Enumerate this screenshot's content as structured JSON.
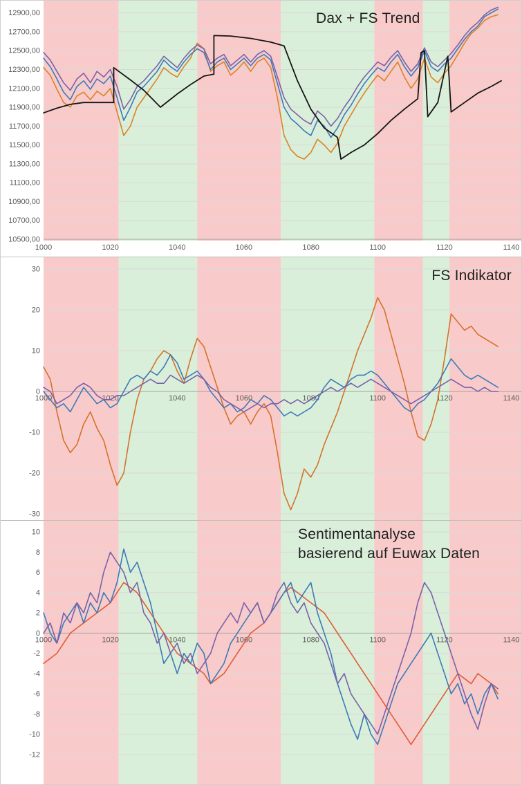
{
  "palette": {
    "band_red": "#f9caca",
    "band_green": "#d9efd9",
    "grid": "#d9d9d9",
    "axis": "#a3a3a3",
    "tick_text": "#595959",
    "title_text": "#1f1f1f",
    "blue": "#3d7ab8",
    "orange_top": "#dd8127",
    "orange_mid": "#d4722b",
    "orange_bottom": "#e05c35",
    "purple": "#7a61a9",
    "black": "#151515"
  },
  "chart_data": [
    {
      "type": "line",
      "title": "Dax + FS Trend",
      "xlabel": "",
      "ylabel": "",
      "xlim": [
        1000,
        1143
      ],
      "ylim": [
        10500,
        13000
      ],
      "xticks": [
        1000,
        1020,
        1040,
        1060,
        1080,
        1100,
        1120,
        1140
      ],
      "yticks": [
        10500,
        10700,
        10900,
        11100,
        11300,
        11500,
        11700,
        11900,
        12100,
        12300,
        12500,
        12700,
        12900
      ],
      "ytick_labels": [
        "10500,00",
        "10700,00",
        "10900,00",
        "11100,00",
        "11300,00",
        "11500,00",
        "11700,00",
        "11900,00",
        "12100,00",
        "12300,00",
        "12500,00",
        "12700,00",
        "12900,00"
      ],
      "grid": true,
      "legend": "none",
      "bands": [
        {
          "from": 1000,
          "to": 1022.5,
          "color": "#f9caca"
        },
        {
          "from": 1022.5,
          "to": 1046,
          "color": "#d9efd9"
        },
        {
          "from": 1046,
          "to": 1071,
          "color": "#f9caca"
        },
        {
          "from": 1071,
          "to": 1099,
          "color": "#d9efd9"
        },
        {
          "from": 1099,
          "to": 1113.5,
          "color": "#f9caca"
        },
        {
          "from": 1113.5,
          "to": 1121.5,
          "color": "#d9efd9"
        },
        {
          "from": 1121.5,
          "to": 1143,
          "color": "#f9caca"
        }
      ],
      "series": [
        {
          "name": "dax-orange",
          "color": "#dd8127",
          "x_start": 1000,
          "x_step": 2,
          "y": [
            12320,
            12240,
            12090,
            11950,
            11900,
            12020,
            12060,
            11980,
            12070,
            12020,
            12100,
            11850,
            11600,
            11700,
            11900,
            12000,
            12100,
            12200,
            12320,
            12260,
            12220,
            12330,
            12420,
            12580,
            12520,
            12280,
            12340,
            12380,
            12240,
            12300,
            12380,
            12280,
            12380,
            12420,
            12320,
            12000,
            11600,
            11450,
            11380,
            11350,
            11420,
            11560,
            11500,
            11420,
            11520,
            11700,
            11820,
            11940,
            12050,
            12150,
            12240,
            12180,
            12280,
            12380,
            12220,
            12100,
            12200,
            12420,
            12220,
            12160,
            12260,
            12340,
            12460,
            12580,
            12680,
            12740,
            12820,
            12860,
            12880
          ]
        },
        {
          "name": "dax-blue",
          "color": "#3d7ab8",
          "x_start": 1000,
          "x_step": 2,
          "y": [
            12420,
            12330,
            12200,
            12060,
            11980,
            12120,
            12180,
            12090,
            12200,
            12150,
            12230,
            12000,
            11760,
            11900,
            12060,
            12120,
            12200,
            12280,
            12400,
            12330,
            12280,
            12380,
            12460,
            12520,
            12480,
            12300,
            12380,
            12420,
            12300,
            12360,
            12420,
            12340,
            12420,
            12460,
            12400,
            12150,
            11900,
            11780,
            11720,
            11650,
            11600,
            11760,
            11700,
            11580,
            11680,
            11820,
            11920,
            12040,
            12150,
            12240,
            12320,
            12280,
            12380,
            12460,
            12330,
            12230,
            12320,
            12500,
            12330,
            12280,
            12360,
            12420,
            12520,
            12620,
            12700,
            12760,
            12860,
            12900,
            12940
          ]
        },
        {
          "name": "dax-purple",
          "color": "#7a61a9",
          "x_start": 1000,
          "x_step": 2,
          "y": [
            12480,
            12400,
            12280,
            12160,
            12080,
            12200,
            12260,
            12160,
            12280,
            12220,
            12300,
            12120,
            11880,
            11980,
            12120,
            12180,
            12260,
            12340,
            12440,
            12380,
            12320,
            12420,
            12500,
            12560,
            12520,
            12360,
            12420,
            12460,
            12340,
            12400,
            12460,
            12380,
            12460,
            12500,
            12440,
            12220,
            12000,
            11880,
            11820,
            11760,
            11720,
            11860,
            11800,
            11700,
            11780,
            11900,
            12000,
            12120,
            12220,
            12300,
            12380,
            12340,
            12430,
            12500,
            12380,
            12280,
            12360,
            12530,
            12380,
            12330,
            12400,
            12470,
            12560,
            12660,
            12740,
            12800,
            12880,
            12930,
            12960
          ]
        },
        {
          "name": "fs-trend-black",
          "color": "#151515",
          "width": 1.8,
          "points": [
            [
              1000,
              11840
            ],
            [
              1004,
              11890
            ],
            [
              1008,
              11930
            ],
            [
              1012,
              11950
            ],
            [
              1016,
              11950
            ],
            [
              1021,
              11950
            ],
            [
              1021,
              12320
            ],
            [
              1026,
              12190
            ],
            [
              1030,
              12080
            ],
            [
              1035,
              11900
            ],
            [
              1040,
              12040
            ],
            [
              1044,
              12140
            ],
            [
              1048,
              12230
            ],
            [
              1051,
              12250
            ],
            [
              1051,
              12660
            ],
            [
              1056,
              12655
            ],
            [
              1062,
              12630
            ],
            [
              1068,
              12590
            ],
            [
              1072,
              12550
            ],
            [
              1076,
              12180
            ],
            [
              1080,
              11880
            ],
            [
              1084,
              11680
            ],
            [
              1088,
              11580
            ],
            [
              1089,
              11350
            ],
            [
              1092,
              11420
            ],
            [
              1096,
              11500
            ],
            [
              1100,
              11620
            ],
            [
              1104,
              11760
            ],
            [
              1108,
              11880
            ],
            [
              1112,
              11990
            ],
            [
              1113,
              12480
            ],
            [
              1114,
              12500
            ],
            [
              1115,
              11800
            ],
            [
              1118,
              11950
            ],
            [
              1121,
              12440
            ],
            [
              1122,
              11850
            ],
            [
              1126,
              11950
            ],
            [
              1130,
              12050
            ],
            [
              1134,
              12120
            ],
            [
              1137,
              12180
            ]
          ]
        }
      ]
    },
    {
      "type": "line",
      "title": "FS Indikator",
      "xlabel": "",
      "ylabel": "",
      "xlim": [
        1000,
        1143
      ],
      "ylim": [
        -30,
        30
      ],
      "xticks": [
        1000,
        1020,
        1040,
        1060,
        1080,
        1100,
        1120,
        1140
      ],
      "yticks": [
        -30,
        -20,
        -10,
        0,
        10,
        20,
        30
      ],
      "grid": true,
      "legend": "none",
      "bands": [
        {
          "from": 1000,
          "to": 1022.5,
          "color": "#f9caca"
        },
        {
          "from": 1022.5,
          "to": 1046,
          "color": "#d9efd9"
        },
        {
          "from": 1046,
          "to": 1071,
          "color": "#f9caca"
        },
        {
          "from": 1071,
          "to": 1099,
          "color": "#d9efd9"
        },
        {
          "from": 1099,
          "to": 1113.5,
          "color": "#f9caca"
        },
        {
          "from": 1113.5,
          "to": 1121.5,
          "color": "#d9efd9"
        },
        {
          "from": 1121.5,
          "to": 1143,
          "color": "#f9caca"
        }
      ],
      "series": [
        {
          "name": "indikator-orange",
          "color": "#d4722b",
          "x_start": 1000,
          "x_step": 2,
          "y": [
            6,
            3,
            -5,
            -12,
            -15,
            -13,
            -8,
            -5,
            -9,
            -12,
            -18,
            -23,
            -20,
            -10,
            -2,
            3,
            5,
            8,
            10,
            9,
            5,
            2,
            8,
            13,
            11,
            6,
            1,
            -4,
            -8,
            -6,
            -5,
            -8,
            -5,
            -3,
            -6,
            -15,
            -25,
            -29,
            -25,
            -19,
            -21,
            -18,
            -13,
            -9,
            -5,
            0,
            5,
            10,
            14,
            18,
            23,
            20,
            14,
            8,
            2,
            -5,
            -11,
            -12,
            -8,
            -2,
            8,
            19,
            17,
            15,
            16,
            14,
            13,
            12,
            11
          ]
        },
        {
          "name": "indikator-blue",
          "color": "#3d7ab8",
          "x_start": 1000,
          "x_step": 2,
          "y": [
            0,
            -2,
            -4,
            -3,
            -5,
            -2,
            1,
            -1,
            -3,
            -2,
            -4,
            -3,
            0,
            3,
            4,
            3,
            5,
            4,
            6,
            9,
            7,
            3,
            4,
            5,
            3,
            0,
            -2,
            -4,
            -3,
            -5,
            -4,
            -2,
            -3,
            -1,
            -2,
            -4,
            -6,
            -5,
            -6,
            -5,
            -4,
            -2,
            1,
            3,
            2,
            1,
            3,
            4,
            4,
            5,
            4,
            2,
            0,
            -2,
            -4,
            -5,
            -3,
            -2,
            0,
            2,
            5,
            8,
            6,
            4,
            3,
            4,
            3,
            2,
            1
          ]
        },
        {
          "name": "indikator-purple",
          "color": "#7a61a9",
          "x_start": 1000,
          "x_step": 2,
          "y": [
            1,
            0,
            -3,
            -2,
            -1,
            1,
            2,
            1,
            -1,
            -2,
            -2,
            -1,
            -1,
            0,
            1,
            2,
            3,
            2,
            2,
            4,
            3,
            2,
            3,
            4,
            3,
            1,
            0,
            -2,
            -3,
            -4,
            -5,
            -4,
            -3,
            -4,
            -3,
            -3,
            -2,
            -3,
            -2,
            -3,
            -2,
            -1,
            0,
            1,
            0,
            1,
            2,
            1,
            2,
            3,
            2,
            1,
            0,
            -1,
            -2,
            -3,
            -2,
            -1,
            0,
            1,
            2,
            3,
            2,
            1,
            1,
            0,
            1,
            0,
            0
          ]
        }
      ]
    },
    {
      "type": "line",
      "title": "Sentimentanalyse basierend auf Euwax Daten",
      "title_lines": [
        "Sentimentanalyse",
        "basierend auf Euwax Daten"
      ],
      "xlabel": "",
      "ylabel": "",
      "xlim": [
        1000,
        1143
      ],
      "ylim": [
        -12,
        10
      ],
      "xticks": [
        1000,
        1020,
        1040,
        1060,
        1080,
        1100,
        1120,
        1140
      ],
      "yticks": [
        -12,
        -10,
        -8,
        -6,
        -4,
        -2,
        0,
        2,
        4,
        6,
        8,
        10
      ],
      "grid": true,
      "legend": "none",
      "bands": [
        {
          "from": 1000,
          "to": 1022.5,
          "color": "#f9caca"
        },
        {
          "from": 1022.5,
          "to": 1046,
          "color": "#d9efd9"
        },
        {
          "from": 1046,
          "to": 1071,
          "color": "#f9caca"
        },
        {
          "from": 1071,
          "to": 1099,
          "color": "#d9efd9"
        },
        {
          "from": 1099,
          "to": 1113.5,
          "color": "#f9caca"
        },
        {
          "from": 1113.5,
          "to": 1121.5,
          "color": "#d9efd9"
        },
        {
          "from": 1121.5,
          "to": 1143,
          "color": "#f9caca"
        }
      ],
      "series": [
        {
          "name": "sentiment-orange",
          "color": "#e05c35",
          "x_start": 1000,
          "x_step": 2,
          "y": [
            -3,
            -2.5,
            -2,
            -1,
            0,
            0.5,
            1,
            1.5,
            2,
            2.5,
            3,
            4,
            5,
            4.5,
            4,
            3,
            2,
            1,
            0,
            -1,
            -2,
            -2.5,
            -3,
            -3.5,
            -4,
            -5,
            -4.5,
            -4,
            -3,
            -2,
            -1,
            0,
            0.5,
            1,
            2,
            3,
            4,
            4.5,
            4,
            3.5,
            3,
            2.5,
            2,
            1,
            0,
            -1,
            -2,
            -3,
            -4,
            -5,
            -6,
            -7,
            -8,
            -9,
            -10,
            -11,
            -10,
            -9,
            -8,
            -7,
            -6,
            -5,
            -4,
            -4.5,
            -5,
            -4,
            -4.5,
            -5,
            -6
          ]
        },
        {
          "name": "sentiment-blue",
          "color": "#3d7ab8",
          "x_start": 1000,
          "x_step": 2,
          "y": [
            2,
            0,
            -1,
            1,
            2,
            3,
            1,
            3,
            2,
            4,
            3,
            5,
            8.3,
            6,
            7,
            5,
            3,
            0,
            -3,
            -2,
            -4,
            -2,
            -3,
            -1,
            -2,
            -5,
            -4,
            -3,
            -1,
            0,
            1,
            2,
            3,
            1,
            2,
            3,
            4,
            5,
            3,
            4,
            5,
            2,
            0,
            -2,
            -5,
            -7,
            -9,
            -10.5,
            -8,
            -10,
            -11,
            -9,
            -7,
            -5,
            -4,
            -3,
            -2,
            -1,
            0,
            -2,
            -4,
            -6,
            -5,
            -7,
            -6,
            -8,
            -6,
            -5,
            -6.5
          ]
        },
        {
          "name": "sentiment-purple",
          "color": "#7a61a9",
          "x_start": 1000,
          "x_step": 2,
          "y": [
            0,
            1,
            -1,
            2,
            1,
            3,
            2,
            4,
            3,
            6,
            8,
            7,
            6,
            4,
            5,
            2,
            1,
            -1,
            0,
            -2,
            -1,
            -3,
            -2,
            -4,
            -3,
            -2,
            0,
            1,
            2,
            1,
            3,
            2,
            3,
            1,
            2,
            4,
            5,
            3,
            2,
            3,
            1,
            0,
            -1,
            -3,
            -5,
            -4,
            -6,
            -7,
            -8,
            -9,
            -10,
            -8,
            -6,
            -4,
            -2,
            0,
            3,
            5,
            4,
            2,
            0,
            -2,
            -4,
            -6,
            -8,
            -9.5,
            -7,
            -5,
            -5.5
          ]
        }
      ]
    }
  ]
}
